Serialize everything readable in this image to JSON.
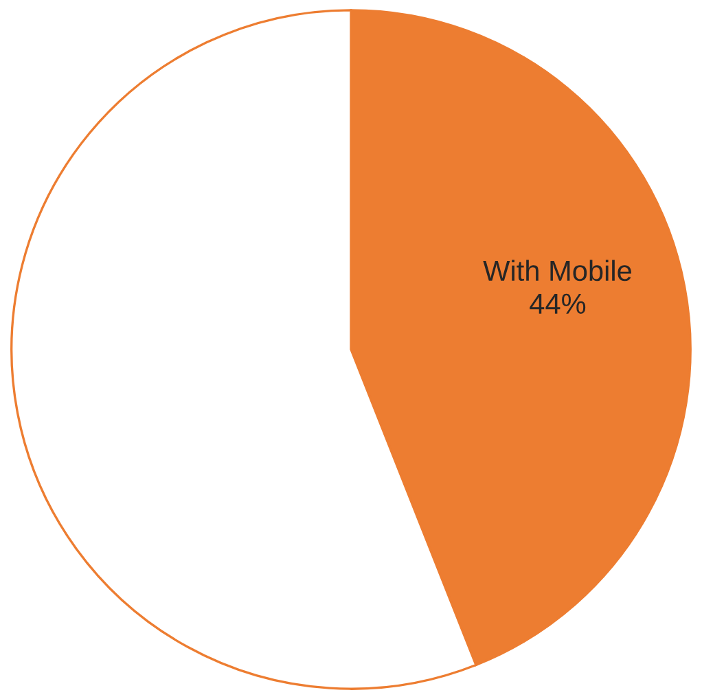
{
  "chart_data": {
    "type": "pie",
    "categories": [
      "With Mobile",
      null
    ],
    "values": [
      44,
      56
    ],
    "colors": [
      "#ed7d31",
      "#ffffff"
    ],
    "value_labels": [
      "44%",
      null
    ]
  }
}
